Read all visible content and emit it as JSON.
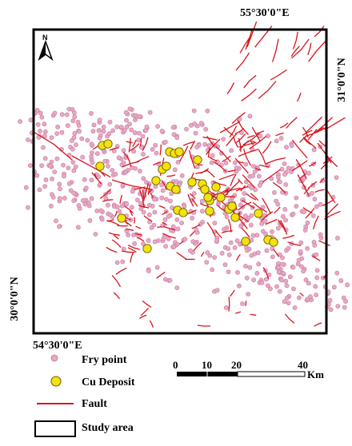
{
  "coordinates": {
    "top": "55°30'0\"E",
    "right": "31°0'0\"N",
    "bottom": "54°30'0\"E",
    "left": "30°0'0\"N"
  },
  "north_arrow": {
    "letter": "N",
    "icon": "north-arrow-icon"
  },
  "legend": {
    "fry_point": "Fry point",
    "cu_deposit": "Cu Deposit",
    "fault": "Fault",
    "study_area": "Study area"
  },
  "scale_bar": {
    "ticks": [
      "0",
      "10",
      "20",
      "40"
    ],
    "unit": "Km"
  },
  "colors": {
    "fry_point_fill": "#e7a9c6",
    "fry_point_stroke": "#c77a9c",
    "cu_deposit_fill": "#f4e20f",
    "cu_deposit_stroke": "#6d5c00",
    "fault": "#d8141c",
    "frame": "#000000"
  }
}
